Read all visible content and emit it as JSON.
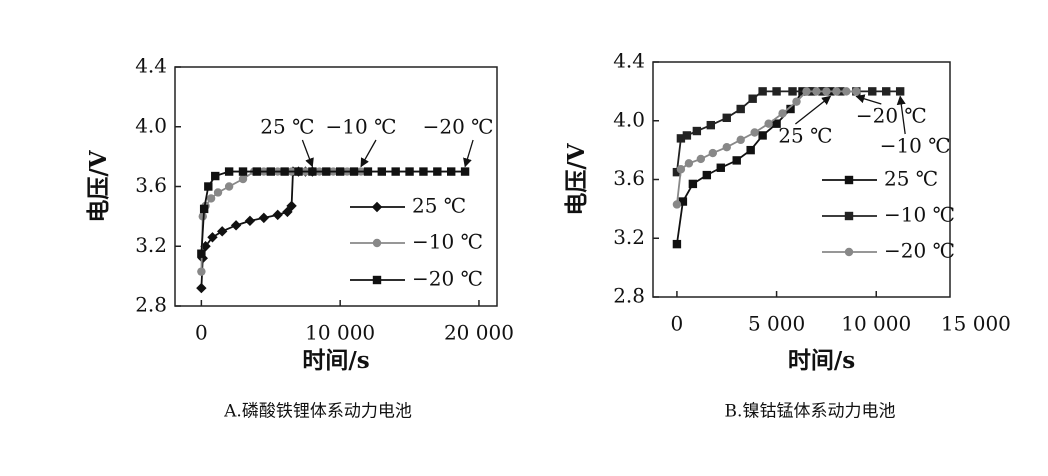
{
  "chart_data": [
    {
      "type": "line",
      "caption": "A.磷酸铁锂体系动力电池",
      "xlabel": "时间/s",
      "ylabel": "电压/V",
      "xlim": [
        -1900,
        21300
      ],
      "ylim": [
        2.8,
        4.4
      ],
      "xticks": [
        0,
        {
          "value": 10000,
          "label": "10 000"
        },
        {
          "value": 20000,
          "label": "20 000"
        }
      ],
      "yticks": [
        2.8,
        3.2,
        3.6,
        {
          "value": 4,
          "label": "4.0"
        },
        4.4
      ],
      "legend": "lower right",
      "series": [
        {
          "name": "25 ℃",
          "color": "#111111",
          "marker": "diamond",
          "x": [
            0,
            100,
            300,
            800,
            1500,
            2500,
            3500,
            4500,
            5500,
            6200,
            6500,
            6600,
            7000,
            7500,
            8000
          ],
          "values": [
            2.92,
            3.12,
            3.2,
            3.26,
            3.3,
            3.34,
            3.37,
            3.39,
            3.41,
            3.43,
            3.47,
            3.7,
            3.7,
            3.7,
            3.7
          ]
        },
        {
          "name": "−10 ℃",
          "color": "#888888",
          "marker": "circle",
          "x": [
            0,
            100,
            300,
            700,
            1200,
            2000,
            3000,
            3800,
            4500,
            5500,
            6500,
            7500,
            8500,
            9500,
            10500,
            11500
          ],
          "values": [
            3.03,
            3.4,
            3.47,
            3.52,
            3.56,
            3.6,
            3.65,
            3.7,
            3.7,
            3.7,
            3.7,
            3.7,
            3.7,
            3.7,
            3.7,
            3.7
          ]
        },
        {
          "name": "−20 ℃",
          "color": "#111111",
          "marker": "square",
          "x": [
            0,
            200,
            500,
            1000,
            2000,
            3000,
            4000,
            5000,
            6000,
            7000,
            8000,
            9000,
            10000,
            11000,
            12000,
            13000,
            14000,
            15000,
            16000,
            17000,
            18000,
            19000
          ],
          "values": [
            3.15,
            3.45,
            3.6,
            3.67,
            3.7,
            3.7,
            3.7,
            3.7,
            3.7,
            3.7,
            3.7,
            3.7,
            3.7,
            3.7,
            3.7,
            3.7,
            3.7,
            3.7,
            3.7,
            3.7,
            3.7,
            3.7
          ]
        }
      ]
    },
    {
      "type": "line",
      "caption": "B.镍钴锰体系动力电池",
      "xlabel": "时间/s",
      "ylabel": "电压/V",
      "xlim": [
        -1200,
        13700
      ],
      "ylim": [
        2.8,
        4.4
      ],
      "xticks": [
        0,
        {
          "value": 5000,
          "label": "5 000"
        },
        {
          "value": 10000,
          "label": "10 000"
        },
        {
          "value": 15000,
          "label": "15 000"
        }
      ],
      "yticks": [
        2.8,
        3.2,
        3.6,
        {
          "value": 4,
          "label": "4.0"
        },
        4.4
      ],
      "legend": "right",
      "series": [
        {
          "name": "25 ℃",
          "color": "#111111",
          "marker": "square",
          "x": [
            0,
            300,
            800,
            1500,
            2200,
            3000,
            3700,
            4300,
            5000,
            5700,
            6300,
            6800,
            7300,
            7700
          ],
          "values": [
            3.16,
            3.45,
            3.57,
            3.63,
            3.68,
            3.73,
            3.8,
            3.9,
            3.98,
            4.08,
            4.2,
            4.2,
            4.2,
            4.2
          ]
        },
        {
          "name": "−10 ℃",
          "color": "#222222",
          "marker": "square",
          "x": [
            0,
            200,
            500,
            1000,
            1700,
            2500,
            3200,
            3800,
            4300,
            5000,
            5800,
            6600,
            7400,
            8200,
            9000,
            9800,
            10500,
            11200
          ],
          "values": [
            3.65,
            3.88,
            3.9,
            3.93,
            3.97,
            4.02,
            4.08,
            4.15,
            4.2,
            4.2,
            4.2,
            4.2,
            4.2,
            4.2,
            4.2,
            4.2,
            4.2,
            4.2
          ]
        },
        {
          "name": "−20 ℃",
          "color": "#888888",
          "marker": "circle",
          "x": [
            0,
            200,
            600,
            1200,
            1800,
            2500,
            3200,
            3900,
            4600,
            5300,
            6000,
            6500,
            7000,
            7500,
            8000,
            8500,
            9000
          ],
          "values": [
            3.43,
            3.67,
            3.71,
            3.74,
            3.78,
            3.82,
            3.87,
            3.92,
            3.98,
            4.05,
            4.13,
            4.2,
            4.2,
            4.2,
            4.2,
            4.2,
            4.2
          ]
        }
      ]
    }
  ]
}
